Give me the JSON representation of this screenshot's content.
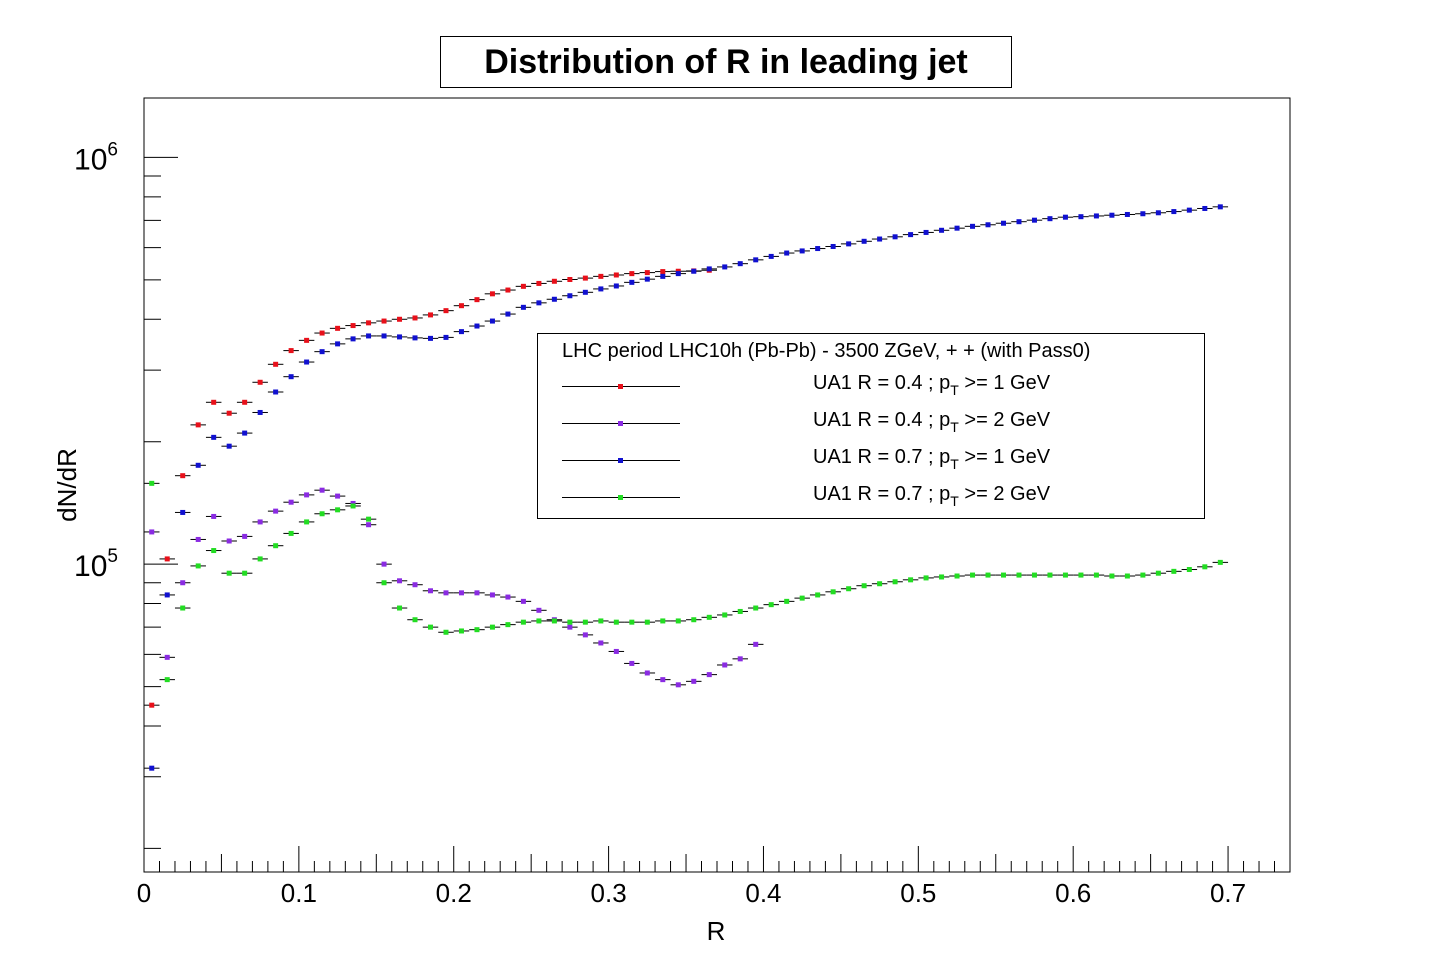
{
  "chart_data": {
    "type": "scatter",
    "title": "Distribution of R in leading jet",
    "xlabel": "R",
    "ylabel": "dN/dR",
    "xlim": [
      0,
      0.74
    ],
    "ylim": [
      17500,
      1400000
    ],
    "yscale": "log",
    "x_ticks": [
      "0",
      "0.1",
      "0.2",
      "0.3",
      "0.4",
      "0.5",
      "0.6",
      "0.7"
    ],
    "y_ticks": [
      {
        "base": "10",
        "exp": "5",
        "value": 100000
      },
      {
        "base": "10",
        "exp": "6",
        "value": 1000000
      }
    ],
    "legend": {
      "header": "LHC period LHC10h (Pb-Pb) - 3500 ZGeV, + + (with Pass0)",
      "placement": "center-right",
      "entries": [
        {
          "text_pre": "UA1 R = 0.4 ; p",
          "text_sub": "T",
          "text_post": " >= 1 GeV",
          "color": "#e8101a"
        },
        {
          "text_pre": "UA1 R = 0.4 ; p",
          "text_sub": "T",
          "text_post": " >= 2 GeV",
          "color": "#8a2be2"
        },
        {
          "text_pre": "UA1 R = 0.7 ; p",
          "text_sub": "T",
          "text_post": " >= 1 GeV",
          "color": "#1010d0"
        },
        {
          "text_pre": "UA1 R = 0.7 ; p",
          "text_sub": "T",
          "text_post": " >= 2 GeV",
          "color": "#22dd22"
        }
      ]
    },
    "series": [
      {
        "color": "#e8101a",
        "x": [
          0.005,
          0.015,
          0.025,
          0.035,
          0.045,
          0.055,
          0.065,
          0.075,
          0.085,
          0.095,
          0.105,
          0.115,
          0.125,
          0.135,
          0.145,
          0.155,
          0.165,
          0.175,
          0.185,
          0.195,
          0.205,
          0.215,
          0.225,
          0.235,
          0.245,
          0.255,
          0.265,
          0.275,
          0.285,
          0.295,
          0.305,
          0.315,
          0.325,
          0.335,
          0.345,
          0.355,
          0.365
        ],
        "values": [
          45000,
          103000,
          165000,
          220000,
          250000,
          235000,
          250000,
          280000,
          310000,
          335000,
          355000,
          370000,
          380000,
          386000,
          392000,
          396000,
          400000,
          403000,
          410000,
          420000,
          432000,
          447000,
          462000,
          472000,
          482000,
          490000,
          496000,
          501000,
          505000,
          510000,
          514000,
          518000,
          521000,
          524000,
          525000,
          526000,
          528000
        ]
      },
      {
        "color": "#8a2be2",
        "x": [
          0.005,
          0.015,
          0.025,
          0.035,
          0.045,
          0.055,
          0.065,
          0.075,
          0.085,
          0.095,
          0.105,
          0.115,
          0.125,
          0.135,
          0.145,
          0.155,
          0.165,
          0.175,
          0.185,
          0.195,
          0.205,
          0.215,
          0.225,
          0.235,
          0.245,
          0.255,
          0.265,
          0.275,
          0.285,
          0.295,
          0.305,
          0.315,
          0.325,
          0.335,
          0.345,
          0.355,
          0.365,
          0.375,
          0.385,
          0.395
        ],
        "values": [
          120000,
          59000,
          90000,
          115000,
          131000,
          114000,
          117000,
          127000,
          135000,
          142000,
          148000,
          152000,
          147000,
          141000,
          125000,
          100000,
          91000,
          89000,
          86000,
          85000,
          85000,
          85000,
          84000,
          83000,
          81000,
          77000,
          73000,
          70000,
          67000,
          64000,
          61000,
          57000,
          54000,
          52000,
          50500,
          51500,
          53500,
          56500,
          58500,
          63500
        ]
      },
      {
        "color": "#1010d0",
        "x": [
          0.005,
          0.015,
          0.025,
          0.035,
          0.045,
          0.055,
          0.065,
          0.075,
          0.085,
          0.095,
          0.105,
          0.115,
          0.125,
          0.135,
          0.145,
          0.155,
          0.165,
          0.175,
          0.185,
          0.195,
          0.205,
          0.215,
          0.225,
          0.235,
          0.245,
          0.255,
          0.265,
          0.275,
          0.285,
          0.295,
          0.305,
          0.315,
          0.325,
          0.335,
          0.345,
          0.355,
          0.365,
          0.375,
          0.385,
          0.395,
          0.405,
          0.415,
          0.425,
          0.435,
          0.445,
          0.455,
          0.465,
          0.475,
          0.485,
          0.495,
          0.505,
          0.515,
          0.525,
          0.535,
          0.545,
          0.555,
          0.565,
          0.575,
          0.585,
          0.595,
          0.605,
          0.615,
          0.625,
          0.635,
          0.645,
          0.655,
          0.665,
          0.675,
          0.685,
          0.695
        ],
        "values": [
          31500,
          84000,
          134000,
          175000,
          205000,
          195000,
          210000,
          236000,
          265000,
          289000,
          314000,
          333000,
          348000,
          358000,
          364000,
          364000,
          362000,
          360000,
          359000,
          361000,
          373000,
          385000,
          396000,
          412000,
          428000,
          439000,
          448000,
          457000,
          466000,
          475000,
          483000,
          493000,
          502000,
          510000,
          518000,
          525000,
          532000,
          538000,
          548000,
          560000,
          571000,
          582000,
          589000,
          597000,
          604000,
          613000,
          622000,
          630000,
          638000,
          646000,
          654000,
          662000,
          670000,
          677000,
          683000,
          689000,
          695000,
          701000,
          707000,
          713000,
          715000,
          718000,
          721000,
          724000,
          727000,
          731000,
          736000,
          742000,
          749000,
          756000
        ]
      },
      {
        "color": "#22dd22",
        "x": [
          0.005,
          0.015,
          0.025,
          0.035,
          0.045,
          0.055,
          0.065,
          0.075,
          0.085,
          0.095,
          0.105,
          0.115,
          0.125,
          0.135,
          0.145,
          0.155,
          0.165,
          0.175,
          0.185,
          0.195,
          0.205,
          0.215,
          0.225,
          0.235,
          0.245,
          0.255,
          0.265,
          0.275,
          0.285,
          0.295,
          0.305,
          0.315,
          0.325,
          0.335,
          0.345,
          0.355,
          0.365,
          0.375,
          0.385,
          0.395,
          0.405,
          0.415,
          0.425,
          0.435,
          0.445,
          0.455,
          0.465,
          0.475,
          0.485,
          0.495,
          0.505,
          0.515,
          0.525,
          0.535,
          0.545,
          0.555,
          0.565,
          0.575,
          0.585,
          0.595,
          0.605,
          0.615,
          0.625,
          0.635,
          0.645,
          0.655,
          0.665,
          0.675,
          0.685,
          0.695
        ],
        "values": [
          158000,
          52000,
          78000,
          99000,
          108000,
          95000,
          95000,
          103000,
          111000,
          119000,
          127000,
          133000,
          136000,
          139000,
          129000,
          90000,
          78000,
          73000,
          70000,
          68000,
          68500,
          69000,
          70000,
          71000,
          72000,
          72500,
          72500,
          72000,
          72000,
          72500,
          72000,
          72000,
          72000,
          72500,
          72500,
          73000,
          74000,
          75000,
          76500,
          78000,
          79500,
          81000,
          82500,
          84000,
          85500,
          87000,
          88500,
          89500,
          90500,
          91500,
          92500,
          93000,
          93500,
          94000,
          94000,
          94000,
          94000,
          94000,
          94000,
          94000,
          94000,
          94000,
          93500,
          93500,
          94000,
          95000,
          96000,
          97000,
          98500,
          101000
        ]
      }
    ]
  }
}
